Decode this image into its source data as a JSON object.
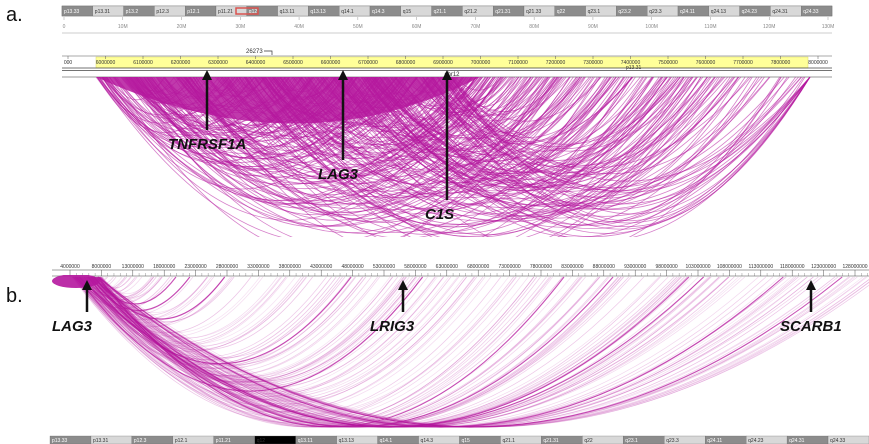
{
  "panel_a": {
    "label": "a.",
    "ideogram_bands": [
      "p13.33",
      "p13.31",
      "p13.2",
      "p12.3",
      "p12.1",
      "p11.21",
      "q12",
      "q13.11",
      "q13.13",
      "q14.1",
      "q14.3",
      "q15",
      "q21.1",
      "q21.2",
      "q21.31",
      "q21.33",
      "q22",
      "q23.1",
      "q23.2",
      "q23.3",
      "q24.11",
      "q24.13",
      "q24.23",
      "q24.31",
      "q24.33"
    ],
    "scale_ticks": [
      "0",
      "10M",
      "20M",
      "30M",
      "40M",
      "50M",
      "60M",
      "70M",
      "80M",
      "90M",
      "100M",
      "110M",
      "120M",
      "130M"
    ],
    "coordinate_label": "26273",
    "zoom_ticks": [
      "000",
      "6000000",
      "6100000",
      "6200000",
      "6300000",
      "6400000",
      "6500000",
      "6600000",
      "6700000",
      "6800000",
      "6900000",
      "7000000",
      "7100000",
      "7200000",
      "7300000",
      "7400000",
      "7500000",
      "7600000",
      "7700000",
      "7800000",
      "8000000"
    ],
    "chrom_label": "chr12",
    "band_label": "p13.31",
    "genes": [
      "TNFRSF1A",
      "LAG3",
      "C1S"
    ]
  },
  "panel_b": {
    "label": "b.",
    "axis_ticks": [
      "4000000",
      "8000000",
      "13000000",
      "18000000",
      "23000000",
      "28000000",
      "33000000",
      "38000000",
      "43000000",
      "48000000",
      "53000000",
      "58000000",
      "63000000",
      "68000000",
      "73000000",
      "78000000",
      "83000000",
      "88000000",
      "93000000",
      "98000000",
      "103000000",
      "108000000",
      "113000000",
      "118000000",
      "123000000",
      "128000000",
      "1330"
    ],
    "genes": [
      "LAG3",
      "LRIG3",
      "SCARB1"
    ],
    "ideogram_bands": [
      "p13.33",
      "p13.31",
      "p12.3",
      "p12.1",
      "p11.21",
      "q12",
      "q13.11",
      "q13.13",
      "q14.1",
      "q14.3",
      "q15",
      "q21.1",
      "q21.31",
      "q22",
      "q23.1",
      "q23.3",
      "q24.11",
      "q24.23",
      "q24.31",
      "q24.33"
    ]
  },
  "colors": {
    "arc": "#b5179e",
    "highlight": "#ffff99",
    "ideogram_dark": "#8c8c8c",
    "ideogram_light": "#d8d8d8"
  }
}
